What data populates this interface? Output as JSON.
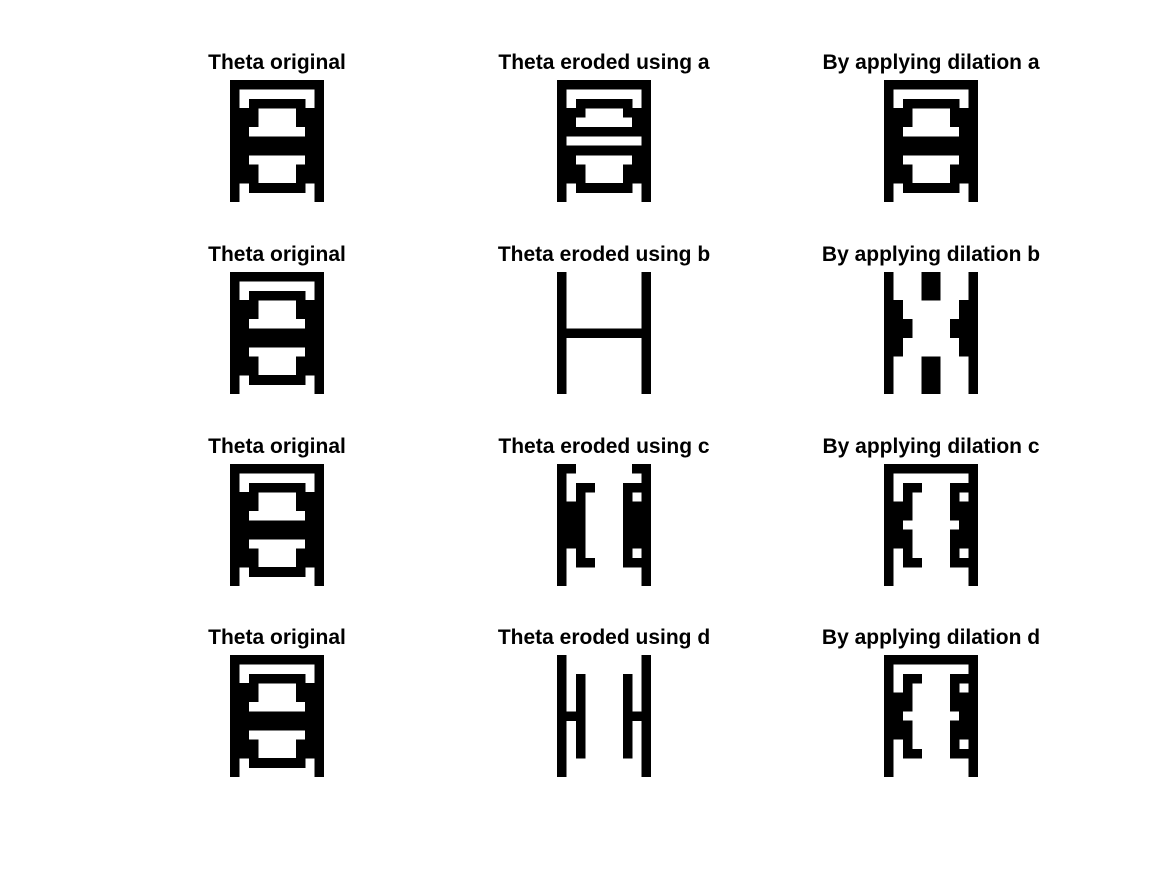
{
  "figure": {
    "panels": [
      {
        "title": "Theta original",
        "image": "theta_original"
      },
      {
        "title": "Theta eroded using a",
        "image": "eroded_a"
      },
      {
        "title": "By applying dilation a",
        "image": "dilated_a"
      },
      {
        "title": "Theta original",
        "image": "theta_original"
      },
      {
        "title": "Theta eroded using b",
        "image": "eroded_b"
      },
      {
        "title": "By applying dilation b",
        "image": "dilated_b"
      },
      {
        "title": "Theta original",
        "image": "theta_original"
      },
      {
        "title": "Theta eroded using c",
        "image": "eroded_c"
      },
      {
        "title": "By applying dilation c",
        "image": "dilated_c"
      },
      {
        "title": "Theta original",
        "image": "theta_original"
      },
      {
        "title": "Theta eroded using d",
        "image": "eroded_d"
      },
      {
        "title": "By applying dilation d",
        "image": "dilated_d"
      }
    ]
  },
  "images": {
    "theta_original": [
      "1111111111",
      "1000000001",
      "1011111101",
      "1110000111",
      "1110000111",
      "1100000011",
      "1111111111",
      "1111111111",
      "1100000011",
      "1110000111",
      "1110000111",
      "1011111101",
      "1000000001"
    ],
    "eroded_a": [
      "1111111111",
      "1000000001",
      "1011111101",
      "1110000111",
      "1100000011",
      "1111111111",
      "1000000001",
      "1111111111",
      "1100000011",
      "1110000111",
      "1110000111",
      "1011111101",
      "1000000001"
    ],
    "dilated_a": [
      "1111111111",
      "1000000001",
      "1011111101",
      "1110000111",
      "1110000111",
      "1100000011",
      "1111111111",
      "1111111111",
      "1100000011",
      "1110000111",
      "1110000111",
      "1011111101",
      "1000000001"
    ],
    "eroded_b": [
      "1000000001",
      "1000000001",
      "1000000001",
      "1000000001",
      "1000000001",
      "1000000001",
      "1111111111",
      "1000000001",
      "1000000001",
      "1000000001",
      "1000000001",
      "1000000001",
      "1000000001"
    ],
    "dilated_b": [
      "1000110001",
      "1000110001",
      "1000110001",
      "1100000011",
      "1100000011",
      "1110000111",
      "1110000111",
      "1100000011",
      "1100000011",
      "1000110001",
      "1000110001",
      "1000110001",
      "1000110001"
    ],
    "eroded_c": [
      "1100000011",
      "1000000001",
      "1011000111",
      "1010000101",
      "1110000111",
      "1110000111",
      "1110000111",
      "1110000111",
      "1110000111",
      "1010000101",
      "1011000111",
      "1000000001",
      "1000000001"
    ],
    "dilated_c": [
      "1111111111",
      "1000000001",
      "1011000111",
      "1010000101",
      "1110000111",
      "1110000111",
      "1100000011",
      "1110000111",
      "1110000111",
      "1010000101",
      "1011000111",
      "1000000001",
      "1000000001"
    ],
    "eroded_d": [
      "1000000001",
      "1000000001",
      "1010000101",
      "1010000101",
      "1010000101",
      "1010000101",
      "1110000111",
      "1010000101",
      "1010000101",
      "1010000101",
      "1010000101",
      "1000000001",
      "1000000001"
    ],
    "dilated_d": [
      "1111111111",
      "1000000001",
      "1011000111",
      "1010000101",
      "1110000111",
      "1110000111",
      "1100000011",
      "1110000111",
      "1110000111",
      "1010000101",
      "1011000111",
      "1000000001",
      "1000000001"
    ]
  }
}
